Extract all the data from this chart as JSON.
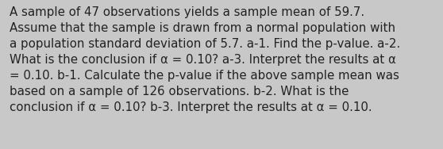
{
  "text": "A sample of 47 observations yields a sample mean of 59.7.\nAssume that the sample is drawn from a normal population with\na population standard deviation of 5.7. a-1. Find the p-value. a-2.\nWhat is the conclusion if α = 0.10? a-3. Interpret the results at α\n= 0.10. b-1. Calculate the p-value if the above sample mean was\nbased on a sample of 126 observations. b-2. What is the\nconclusion if α = 0.10? b-3. Interpret the results at α = 0.10.",
  "background_color": "#c8c8c8",
  "text_color": "#222222",
  "font_size": 10.8,
  "fig_width": 5.58,
  "fig_height": 1.88
}
